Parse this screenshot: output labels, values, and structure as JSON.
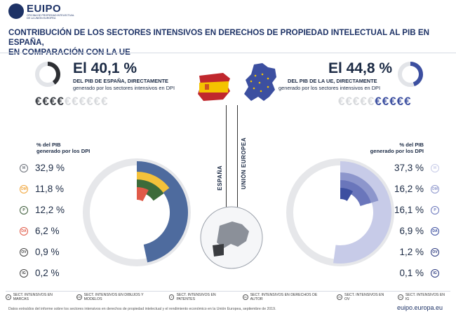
{
  "header": {
    "logo_text": "EUIPO",
    "logo_sub": "OFICINA DE PROPIEDAD INTELECTUAL DE LA UNIÓN EUROPEA",
    "title_line1": "CONTRIBUCIÓN DE LOS SECTORES INTENSIVOS EN DERECHOS DE PROPIEDAD INTELECTUAL AL PIB EN ESPAÑA,",
    "title_line2": "EN COMPARACIÓN CON LA UE"
  },
  "spain": {
    "headline": "El 40,1 %",
    "line1": "DEL PIB DE ESPAÑA, DIRECTAMENTE",
    "line2": "generado por los sectores intensivos en DPI",
    "share": 0.401,
    "euros_on": "€€€€",
    "euros_off": "€€€€€€",
    "vertical_label": "ESPAÑA",
    "col_header_1": "% del PIB",
    "col_header_2": "generado por los DPI",
    "rows": [
      {
        "badge": "M",
        "value": "32,9 %",
        "color": "#4e6b9e"
      },
      {
        "badge": "DM",
        "value": "11,8 %",
        "color": "#f0a53a"
      },
      {
        "badge": "P",
        "value": "12,2 %",
        "color": "#3d5c3a"
      },
      {
        "badge": "DA",
        "value": "6,2 %",
        "color": "#e05a48"
      },
      {
        "badge": "OV",
        "value": "0,9 %",
        "color": "#444"
      },
      {
        "badge": "IG",
        "value": "0,2 %",
        "color": "#444"
      }
    ]
  },
  "eu": {
    "headline": "El 44,8 %",
    "line1": "DEL PIB DE LA UE, DIRECTAMENTE",
    "line2": "generado por los sectores intensivos en DPI",
    "share": 0.448,
    "euros_off": "€€€€€",
    "euros_on": "€€€€€",
    "vertical_label": "UNIÓN EUROPEA",
    "col_header_1": "% del PIB",
    "col_header_2": "generado por los DPI",
    "rows": [
      {
        "badge": "M",
        "value": "37,3 %"
      },
      {
        "badge": "DM",
        "value": "16,2 %"
      },
      {
        "badge": "P",
        "value": "16,1 %"
      },
      {
        "badge": "DA",
        "value": "6,9 %"
      },
      {
        "badge": "OV",
        "value": "1,2 %"
      },
      {
        "badge": "IG",
        "value": "0,1 %"
      }
    ]
  },
  "legend": [
    {
      "badge": "M",
      "label": "SECT. INTENSIVOS EN MARCAS"
    },
    {
      "badge": "DM",
      "label": "SECT. INTENSIVOS EN DIBUJOS Y MODELOS"
    },
    {
      "badge": "P",
      "label": "SECT. INTENSIVOS EN PATENTES"
    },
    {
      "badge": "DA",
      "label": "SECT. INTENSIVOS EN DERECHOS DE AUTOR"
    },
    {
      "badge": "OV",
      "label": "SECT. INTENSIVOS EN OV"
    },
    {
      "badge": "IG",
      "label": "SECT. INTENSIVOS EN IG"
    }
  ],
  "footer": {
    "source": "Datos extraídos del informe sobre los sectores intensivos en derechos de propiedad intelectual y el rendimiento económico en la Unión Europea, septiembre de 2019.",
    "site": "euipo.europa.eu"
  },
  "colors": {
    "navy": "#1d3266",
    "eu_blue": "#3c4fa0",
    "es_red": "#c0272d",
    "es_yellow": "#f4c300"
  }
}
